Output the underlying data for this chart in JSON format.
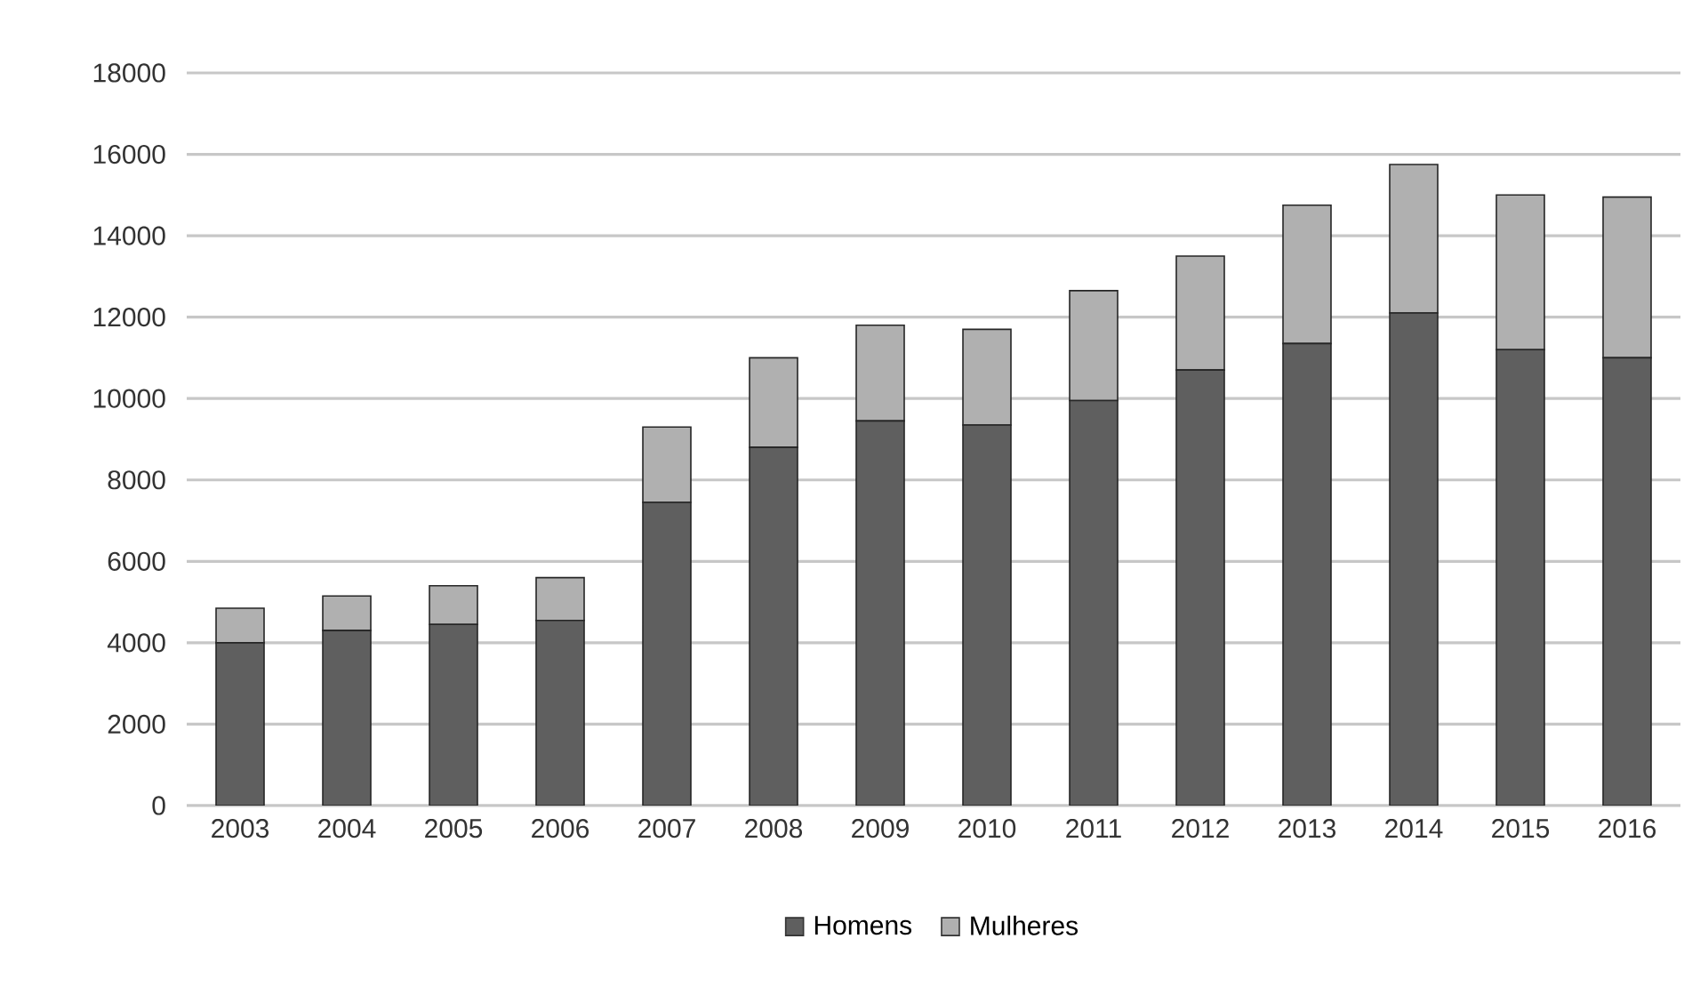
{
  "chart_data": {
    "type": "bar",
    "stacked": true,
    "categories": [
      "2003",
      "2004",
      "2005",
      "2006",
      "2007",
      "2008",
      "2009",
      "2010",
      "2011",
      "2012",
      "2013",
      "2014",
      "2015",
      "2016"
    ],
    "series": [
      {
        "name": "Homens",
        "color": "#5f5f5f",
        "values": [
          4000,
          4300,
          4450,
          4550,
          7450,
          8800,
          9450,
          9350,
          9950,
          10700,
          11350,
          12100,
          11200,
          11000
        ]
      },
      {
        "name": "Mulheres",
        "color": "#b0b0b0",
        "values": [
          850,
          850,
          950,
          1050,
          1850,
          2200,
          2350,
          2350,
          2700,
          2800,
          3400,
          3650,
          3800,
          3950
        ]
      }
    ],
    "ylim": [
      0,
      18000
    ],
    "yticks": [
      0,
      2000,
      4000,
      6000,
      8000,
      10000,
      12000,
      14000,
      16000,
      18000
    ],
    "grid": "y",
    "legend": "bottom"
  }
}
